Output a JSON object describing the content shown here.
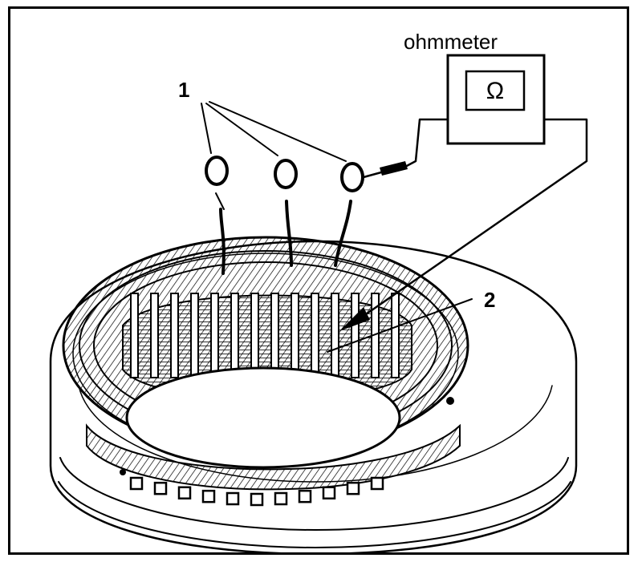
{
  "labels": {
    "ohmmeter": "ohmmeter",
    "meter_symbol": "Ω",
    "callout_1": "1",
    "callout_2": "2"
  },
  "colors": {
    "ink": "#000000",
    "paper": "#ffffff"
  }
}
